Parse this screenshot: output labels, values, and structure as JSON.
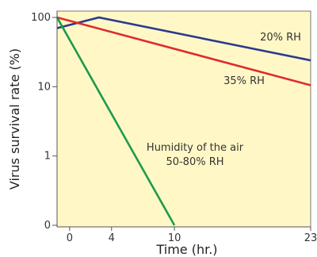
{
  "chart_data": {
    "type": "line",
    "xlabel": "Time (hr.)",
    "ylabel": "Virus survival rate (%)",
    "xlim": [
      -1.2,
      23
    ],
    "y_scale": "log",
    "y_tick_labels": [
      "100",
      "10",
      "1",
      "0"
    ],
    "y_tick_values": [
      100,
      10,
      1,
      0.1
    ],
    "x_tick_labels": [
      "0",
      "4",
      "10",
      "23"
    ],
    "x_tick_values": [
      0,
      4,
      10,
      23
    ],
    "grid": false,
    "plot_background": "#FFF8C6",
    "series": [
      {
        "name": "20% RH",
        "color": "#2B3990",
        "x": [
          -1.2,
          2.8,
          23
        ],
        "y": [
          70,
          100,
          24
        ]
      },
      {
        "name": "35% RH",
        "color": "#E02A2E",
        "x": [
          -1.2,
          23
        ],
        "y": [
          100,
          10.5
        ]
      },
      {
        "name": "Humidity of the air 50-80% RH",
        "color": "#1E9A4C",
        "x": [
          -1.2,
          10
        ],
        "y": [
          100,
          0.1
        ]
      }
    ],
    "annotations": [
      {
        "text": "20% RH",
        "series": 0
      },
      {
        "text": "35% RH",
        "series": 1
      },
      {
        "text": "Humidity of the air",
        "series": 2
      },
      {
        "text": "50-80% RH",
        "series": 2
      }
    ]
  }
}
